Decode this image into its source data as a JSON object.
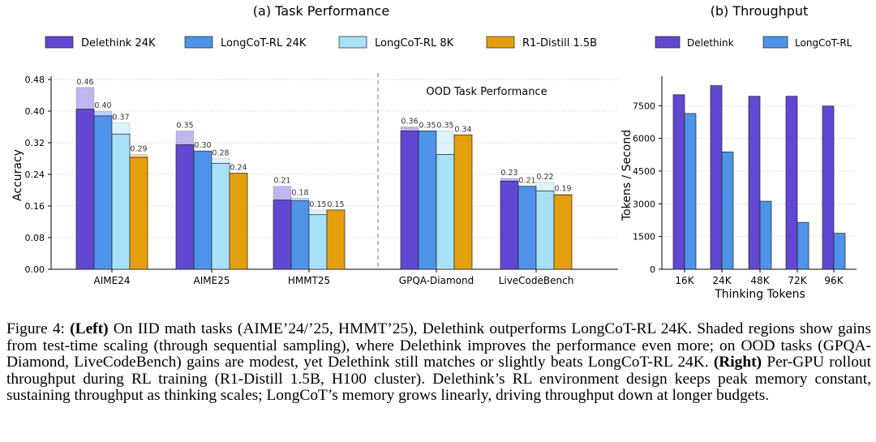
{
  "figure": {
    "left_panel": {
      "title": "(a) Task Performance",
      "ylabel": "Accuracy",
      "ood_label": "OOD Task Performance",
      "yticks": [
        "0.00",
        "0.08",
        "0.16",
        "0.24",
        "0.32",
        "0.40",
        "0.48"
      ]
    },
    "right_panel": {
      "title": "(b) Throughput",
      "ylabel": "Tokens / Second",
      "xlabel": "Thinking Tokens",
      "yticks": [
        "0",
        "1500",
        "3000",
        "4500",
        "6000",
        "7500"
      ]
    },
    "caption": {
      "fig_label": "Figure 4: ",
      "left_tag": "(Left)",
      "text_1": " On IID math tasks (AIME’24/’25, HMMT’25), Delethink outperforms LongCoT-RL 24K. Shaded regions show gains from test-time scaling (through sequential sampling), where Delethink improves the performance even more; on OOD tasks (GPQA-Diamond, LiveCodeBench) gains are modest, yet Delethink still matches or slightly beats LongCoT-RL 24K. ",
      "right_tag": "(Right)",
      "text_2": " Per-GPU rollout throughput during RL training (R1-Distill 1.5B, H100 cluster). Delethink’s RL environment design keeps peak memory constant, sustaining throughput as thinking scales; LongCoT’s memory grows linearly, driving throughput down at longer budgets."
    }
  },
  "chart_data": [
    {
      "type": "bar",
      "title": "(a) Task Performance",
      "xlabel": "",
      "ylabel": "Accuracy",
      "ylim": [
        0,
        0.48
      ],
      "grid": true,
      "legend_placement": "top",
      "categories": [
        "AIME24",
        "AIME25",
        "HMMT25",
        "GPQA-Diamond",
        "LiveCodeBench"
      ],
      "annotations": [
        "OOD Task Performance"
      ],
      "series": [
        {
          "name": "Delethink 24K",
          "color": "#6247d2",
          "values": [
            0.405,
            0.315,
            0.175,
            0.35,
            0.223
          ],
          "scaled_values": [
            0.46,
            0.35,
            0.21,
            0.36,
            0.23
          ]
        },
        {
          "name": "LongCoT-RL 24K",
          "color": "#4f93e8",
          "values": [
            0.388,
            0.298,
            0.173,
            0.35,
            0.21
          ],
          "scaled_values": [
            0.4,
            0.3,
            0.18,
            0.35,
            0.21
          ]
        },
        {
          "name": "LongCoT-RL 8K",
          "color": "#a8e1f7",
          "values": [
            0.342,
            0.268,
            0.138,
            0.29,
            0.198
          ],
          "scaled_values": [
            0.37,
            0.28,
            0.15,
            0.35,
            0.22
          ]
        },
        {
          "name": "R1-Distill 1.5B",
          "color": "#e3a00c",
          "values": [
            0.283,
            0.243,
            0.15,
            0.34,
            0.188
          ],
          "scaled_values": [
            0.29,
            0.24,
            0.15,
            0.34,
            0.19
          ]
        }
      ]
    },
    {
      "type": "bar",
      "title": "(b) Throughput",
      "xlabel": "Thinking Tokens",
      "ylabel": "Tokens / Second",
      "ylim": [
        0,
        8700
      ],
      "yticks": [
        0,
        1500,
        3000,
        4500,
        6000,
        7500
      ],
      "grid": true,
      "legend_placement": "top",
      "categories": [
        "16K",
        "24K",
        "48K",
        "72K",
        "96K"
      ],
      "series": [
        {
          "name": "Delethink",
          "color": "#6247d2",
          "values": [
            8000,
            8420,
            7930,
            7930,
            7480
          ]
        },
        {
          "name": "LongCoT-RL",
          "color": "#4f93e8",
          "values": [
            7140,
            5380,
            3120,
            2150,
            1650
          ]
        }
      ]
    }
  ]
}
